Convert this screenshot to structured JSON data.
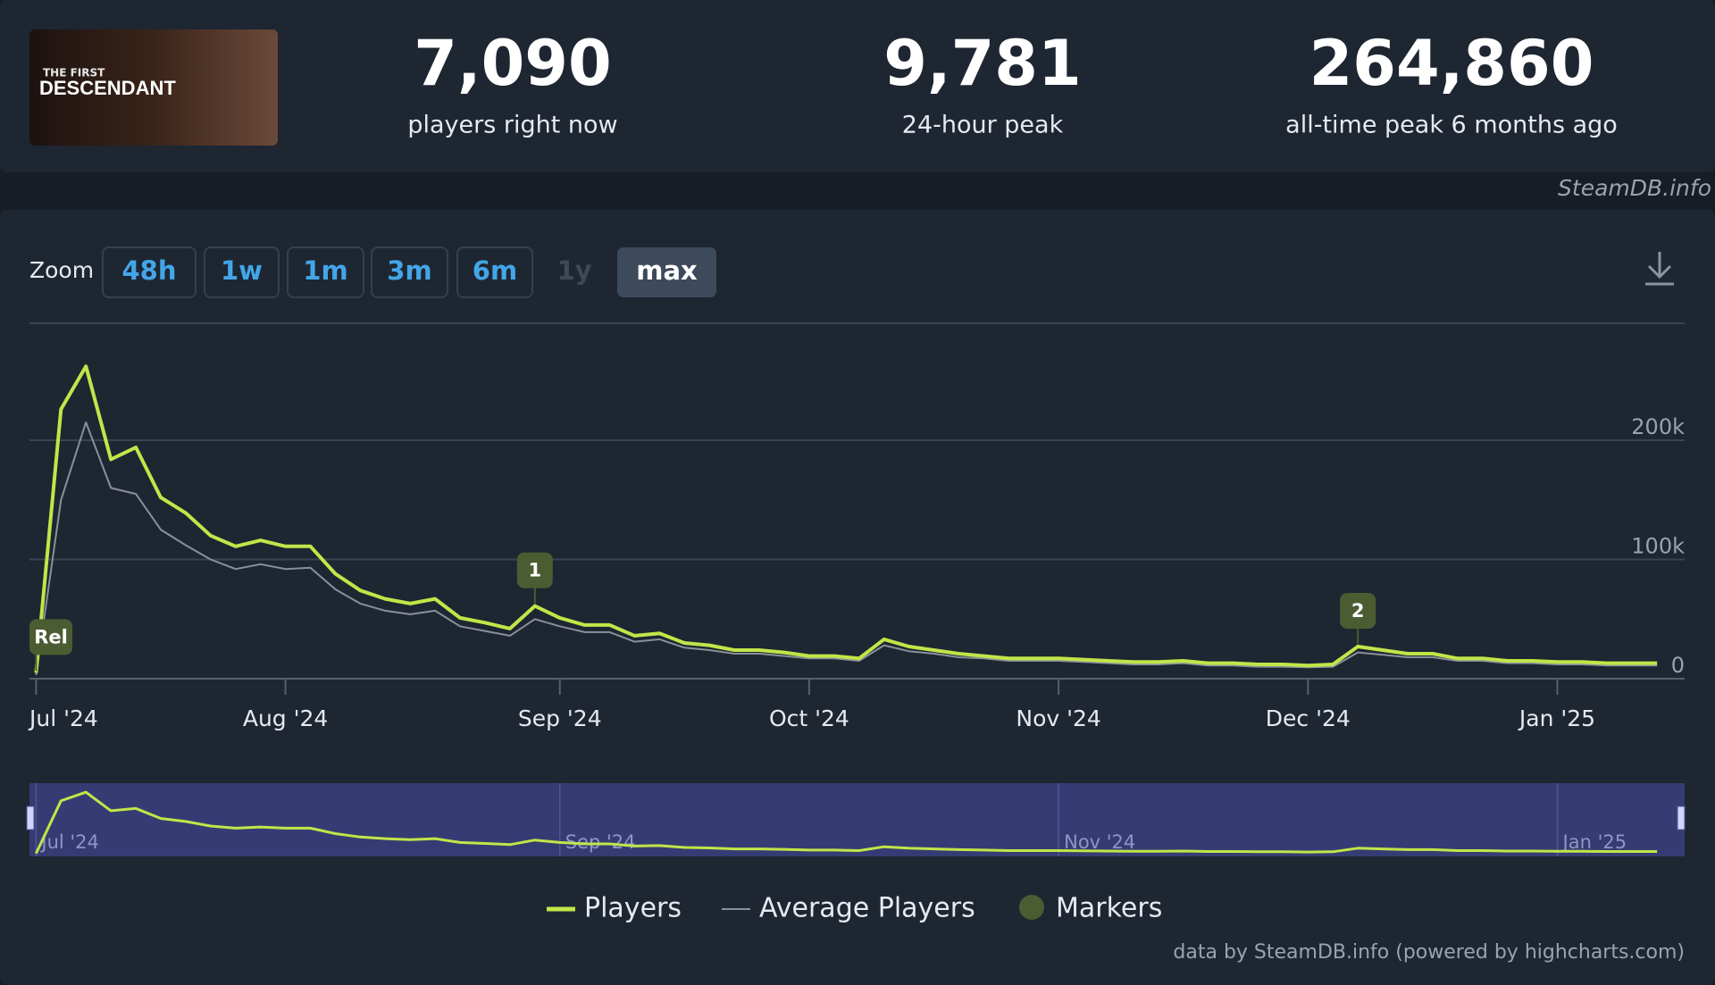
{
  "header": {
    "game": {
      "small": "THE FIRST",
      "logo": "DESCENDANT"
    },
    "stats": [
      {
        "value": "7,090",
        "label": "players right now"
      },
      {
        "value": "9,781",
        "label": "24-hour peak"
      },
      {
        "value": "264,860",
        "label": "all-time peak 6 months ago"
      }
    ],
    "watermark": "SteamDB.info"
  },
  "zoom": {
    "label": "Zoom",
    "options": [
      "48h",
      "1w",
      "1m",
      "3m",
      "6m",
      "1y",
      "max"
    ],
    "active": "max",
    "disabled": "1y"
  },
  "chart_data": {
    "type": "line",
    "categories": [
      "Jul '24",
      null,
      null,
      null,
      null,
      null,
      null,
      null,
      null,
      null,
      "Aug '24",
      null,
      null,
      null,
      null,
      null,
      null,
      null,
      null,
      null,
      null,
      "Sep '24",
      null,
      null,
      null,
      null,
      null,
      null,
      null,
      null,
      null,
      "Oct '24",
      null,
      null,
      null,
      null,
      null,
      null,
      null,
      null,
      null,
      "Nov '24",
      null,
      null,
      null,
      null,
      null,
      null,
      null,
      null,
      null,
      "Dec '24",
      null,
      null,
      null,
      null,
      null,
      null,
      null,
      null,
      null,
      "Jan '25",
      null,
      null,
      null,
      null
    ],
    "series": [
      {
        "name": "Players",
        "color": "#c2e548",
        "values": [
          5000,
          226000,
          262000,
          184000,
          194000,
          152000,
          139000,
          120000,
          111000,
          116000,
          111000,
          111000,
          88000,
          74000,
          67000,
          63000,
          67000,
          51000,
          47000,
          42000,
          61000,
          51000,
          45000,
          45000,
          36000,
          38000,
          30000,
          28000,
          24000,
          24000,
          22000,
          19000,
          19000,
          17000,
          33000,
          27000,
          24000,
          21000,
          19000,
          17000,
          17000,
          17000,
          16000,
          15000,
          14000,
          14000,
          15000,
          13000,
          13000,
          12000,
          12000,
          11000,
          12000,
          27000,
          24000,
          21000,
          21000,
          17000,
          17000,
          15000,
          15000,
          14000,
          14000,
          13000,
          13000,
          13000
        ]
      },
      {
        "name": "Average Players",
        "color": "#8a9099",
        "values": [
          3000,
          150000,
          215000,
          160000,
          155000,
          125000,
          112000,
          100000,
          92000,
          96000,
          92000,
          93000,
          75000,
          63000,
          57000,
          54000,
          57000,
          44000,
          40000,
          36000,
          50000,
          44000,
          39000,
          39000,
          31000,
          33000,
          26000,
          24000,
          21000,
          21000,
          19000,
          17000,
          17000,
          15000,
          28000,
          23000,
          21000,
          18000,
          17000,
          15000,
          15000,
          15000,
          14000,
          13000,
          12000,
          12000,
          13000,
          11000,
          11000,
          10000,
          10000,
          9500,
          10000,
          22000,
          20000,
          18000,
          18000,
          15000,
          15000,
          13000,
          13000,
          12000,
          12000,
          11000,
          11000,
          11000
        ]
      }
    ],
    "annotations": [
      {
        "text": "Rel",
        "x": 0
      },
      {
        "text": "1",
        "x": 20
      },
      {
        "text": "2",
        "x": 53
      }
    ],
    "marker_legend": "Markers",
    "marker_color": "#4b5c33",
    "ylim": [
      0,
      300000
    ],
    "yticks": [
      0,
      {
        "value": 100000,
        "label": "100k"
      },
      {
        "value": 200000,
        "label": "200k"
      }
    ],
    "grid": true,
    "credits": "data by SteamDB.info (powered by highcharts.com)"
  }
}
